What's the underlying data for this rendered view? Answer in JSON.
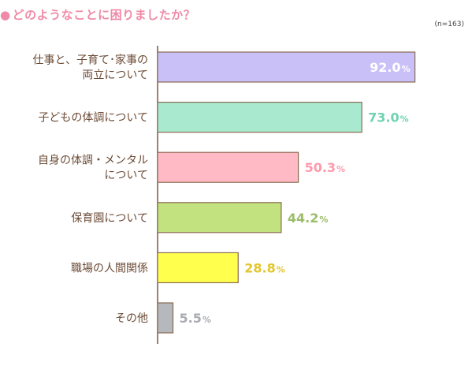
{
  "title": "どのようなことに困りましたか？",
  "chart_data": {
    "type": "bar",
    "orientation": "horizontal",
    "note": "(n=163)",
    "unit": "%",
    "xlim": [
      0,
      100
    ],
    "categories": [
      [
        "仕事と、子育て･家事の",
        "両立について"
      ],
      [
        "子どもの体調について"
      ],
      [
        "自身の体調・メンタル",
        "について"
      ],
      [
        "保育園について"
      ],
      [
        "職場の人間関係"
      ],
      [
        "その他"
      ]
    ],
    "values": [
      92.0,
      73.0,
      50.3,
      44.2,
      28.8,
      5.5
    ],
    "value_labels": [
      "92.0",
      "73.0",
      "50.3",
      "44.2",
      "28.8",
      "5.5"
    ],
    "bar_colors": [
      "#c9c0f7",
      "#a8e9cf",
      "#ffbac6",
      "#c2e27f",
      "#ffff4d",
      "#b5b8bc"
    ],
    "label_colors": [
      "#ffffff",
      "#6fd2b0",
      "#ff99ac",
      "#9bbc68",
      "#e2c62c",
      "#a8abb0"
    ]
  }
}
